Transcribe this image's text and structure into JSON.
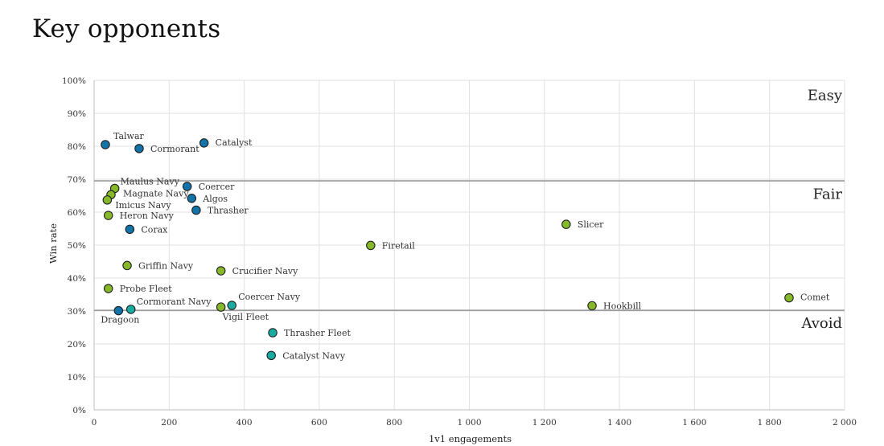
{
  "page": {
    "title": "Key opponents"
  },
  "chart_data": {
    "type": "scatter",
    "title": "Key opponents",
    "xlabel": "1v1 engagements",
    "ylabel": "Win rate",
    "xlim": [
      0,
      2000
    ],
    "ylim": [
      0,
      100
    ],
    "x_ticks": [
      "0",
      "200",
      "400",
      "600",
      "800",
      "1 000",
      "1 200",
      "1 400",
      "1 600",
      "1 800",
      "2 000"
    ],
    "x_tick_values": [
      0,
      200,
      400,
      600,
      800,
      1000,
      1200,
      1400,
      1600,
      1800,
      2000
    ],
    "y_ticks": [
      "0%",
      "10%",
      "20%",
      "30%",
      "40%",
      "50%",
      "60%",
      "70%",
      "80%",
      "90%",
      "100%"
    ],
    "y_tick_values": [
      0,
      10,
      20,
      30,
      40,
      50,
      60,
      70,
      80,
      90,
      100
    ],
    "grid": true,
    "thresholds": [
      {
        "y": 69.5,
        "label": "Fair"
      },
      {
        "y": 30.2,
        "label": "Avoid"
      }
    ],
    "zone_labels": [
      {
        "text": "Easy",
        "y": 95.5
      },
      {
        "text": "Fair",
        "y": 65.5
      },
      {
        "text": "Avoid",
        "y": 26.3
      }
    ],
    "colors": {
      "blue": "#1273a8",
      "green": "#86b82a",
      "teal": "#19aaa0"
    },
    "points": [
      {
        "name": "Talwar",
        "x": 30,
        "y": 80.5,
        "color": "blue",
        "lx": 10,
        "ly": -7
      },
      {
        "name": "Cormorant",
        "x": 120,
        "y": 79.3,
        "color": "blue",
        "lx": 14,
        "ly": 4
      },
      {
        "name": "Catalyst",
        "x": 293,
        "y": 81.0,
        "color": "blue",
        "lx": 14,
        "ly": 3
      },
      {
        "name": "Maulus Navy",
        "x": 55,
        "y": 67.2,
        "color": "green",
        "lx": 7,
        "ly": -5
      },
      {
        "name": "Magnate Navy",
        "x": 45,
        "y": 65.3,
        "color": "green",
        "lx": 15,
        "ly": 2
      },
      {
        "name": "Imicus Navy",
        "x": 35,
        "y": 63.7,
        "color": "green",
        "lx": 10,
        "ly": 10
      },
      {
        "name": "Heron Navy",
        "x": 38,
        "y": 59.0,
        "color": "green",
        "lx": 14,
        "ly": 4
      },
      {
        "name": "Coercer",
        "x": 248,
        "y": 67.8,
        "color": "blue",
        "lx": 14,
        "ly": 4
      },
      {
        "name": "Algos",
        "x": 260,
        "y": 64.2,
        "color": "blue",
        "lx": 14,
        "ly": 4
      },
      {
        "name": "Thrasher",
        "x": 272,
        "y": 60.6,
        "color": "blue",
        "lx": 14,
        "ly": 4
      },
      {
        "name": "Corax",
        "x": 95,
        "y": 54.8,
        "color": "blue",
        "lx": 14,
        "ly": 4
      },
      {
        "name": "Slicer",
        "x": 1258,
        "y": 56.3,
        "color": "green",
        "lx": 14,
        "ly": 4
      },
      {
        "name": "Firetail",
        "x": 737,
        "y": 49.9,
        "color": "green",
        "lx": 14,
        "ly": 4
      },
      {
        "name": "Griffin Navy",
        "x": 88,
        "y": 43.8,
        "color": "green",
        "lx": 14,
        "ly": 4
      },
      {
        "name": "Crucifier Navy",
        "x": 338,
        "y": 42.2,
        "color": "green",
        "lx": 14,
        "ly": 4
      },
      {
        "name": "Probe Fleet",
        "x": 38,
        "y": 36.8,
        "color": "green",
        "lx": 14,
        "ly": 4
      },
      {
        "name": "Cormorant Navy",
        "x": 98,
        "y": 30.5,
        "color": "teal",
        "lx": 7,
        "ly": -6
      },
      {
        "name": "Dragoon",
        "x": 65,
        "y": 30.1,
        "color": "blue",
        "lx": -22,
        "ly": 15
      },
      {
        "name": "Coercer Navy",
        "x": 367,
        "y": 31.7,
        "color": "teal",
        "lx": 8,
        "ly": -7
      },
      {
        "name": "Vigil Fleet",
        "x": 338,
        "y": 31.2,
        "color": "green",
        "lx": 2,
        "ly": 16
      },
      {
        "name": "Hookbill",
        "x": 1327,
        "y": 31.6,
        "color": "green",
        "lx": 14,
        "ly": 4
      },
      {
        "name": "Comet",
        "x": 1852,
        "y": 34.0,
        "color": "green",
        "lx": 14,
        "ly": 3
      },
      {
        "name": "Thrasher Fleet",
        "x": 476,
        "y": 23.4,
        "color": "teal",
        "lx": 14,
        "ly": 4
      },
      {
        "name": "Catalyst Navy",
        "x": 472,
        "y": 16.5,
        "color": "teal",
        "lx": 14,
        "ly": 4
      }
    ]
  }
}
